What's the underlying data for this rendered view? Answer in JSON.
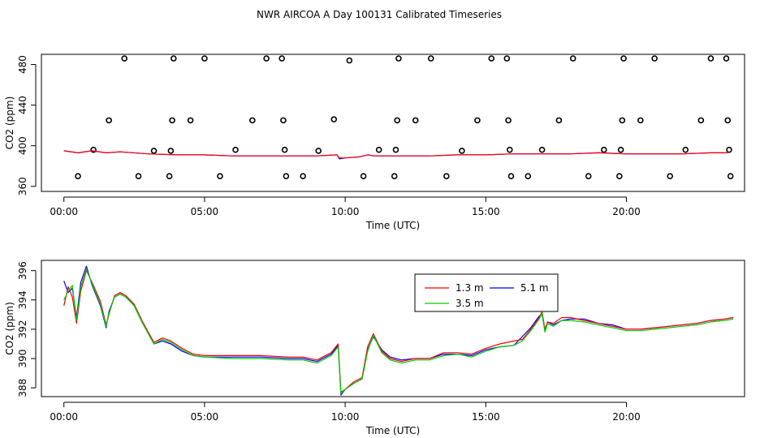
{
  "title": "NWR AIRCOA A  Day 100131  Calibrated Timeseries",
  "colors": {
    "red": "#ff0000",
    "green": "#00cd00",
    "blue": "#0000ff",
    "black": "#000000"
  },
  "chart_data": [
    {
      "type": "scatter",
      "xlabel": "Time (UTC)",
      "ylabel": "CO2 (ppm)",
      "xlim": [
        -0.8,
        24.2
      ],
      "ylim": [
        355,
        490
      ],
      "xticks": [
        0,
        5,
        10,
        15,
        20
      ],
      "xtick_labels": [
        "00:00",
        "05:00",
        "10:00",
        "15:00",
        "20:00"
      ],
      "yticks": [
        360,
        400,
        440,
        480
      ],
      "ytick_labels": [
        "360",
        "400",
        "440",
        "480"
      ],
      "points": [
        [
          0.5,
          370
        ],
        [
          1.05,
          396
        ],
        [
          1.6,
          425
        ],
        [
          2.15,
          486
        ],
        [
          2.65,
          370
        ],
        [
          3.2,
          395
        ],
        [
          3.75,
          370
        ],
        [
          3.8,
          395
        ],
        [
          3.85,
          425
        ],
        [
          3.9,
          486
        ],
        [
          4.5,
          425
        ],
        [
          5.0,
          486
        ],
        [
          5.55,
          370
        ],
        [
          6.1,
          396
        ],
        [
          6.7,
          425
        ],
        [
          7.2,
          486
        ],
        [
          7.75,
          486
        ],
        [
          7.8,
          425
        ],
        [
          7.85,
          396
        ],
        [
          7.9,
          370
        ],
        [
          8.5,
          370
        ],
        [
          9.05,
          395
        ],
        [
          9.6,
          426
        ],
        [
          10.15,
          484
        ],
        [
          10.65,
          370
        ],
        [
          11.2,
          396
        ],
        [
          11.75,
          370
        ],
        [
          11.8,
          396
        ],
        [
          11.85,
          425
        ],
        [
          11.9,
          486
        ],
        [
          12.5,
          425
        ],
        [
          13.05,
          486
        ],
        [
          13.6,
          370
        ],
        [
          14.15,
          395
        ],
        [
          14.7,
          425
        ],
        [
          15.2,
          486
        ],
        [
          15.75,
          486
        ],
        [
          15.8,
          425
        ],
        [
          15.85,
          396
        ],
        [
          15.9,
          370
        ],
        [
          16.5,
          370
        ],
        [
          17.0,
          396
        ],
        [
          17.6,
          425
        ],
        [
          18.1,
          486
        ],
        [
          18.65,
          370
        ],
        [
          19.2,
          396
        ],
        [
          19.75,
          370
        ],
        [
          19.8,
          396
        ],
        [
          19.85,
          425
        ],
        [
          19.9,
          486
        ],
        [
          20.5,
          425
        ],
        [
          21.0,
          486
        ],
        [
          21.55,
          370
        ],
        [
          22.1,
          396
        ],
        [
          22.65,
          425
        ],
        [
          23.0,
          486
        ],
        [
          23.55,
          486
        ],
        [
          23.6,
          425
        ],
        [
          23.65,
          396
        ],
        [
          23.7,
          370
        ]
      ],
      "line_series": [
        {
          "name": "5.1 m",
          "color": "blue",
          "x": [
            0,
            0.5,
            1,
            1.5,
            2,
            3,
            4,
            5,
            6,
            7,
            8,
            9,
            9.7,
            9.8,
            10,
            10.5,
            10.8,
            11,
            12,
            13,
            14,
            15,
            16,
            17,
            18,
            19,
            20,
            21,
            22,
            23,
            23.6
          ],
          "y": [
            395,
            393,
            395,
            393,
            394,
            392,
            391,
            391,
            390,
            390,
            390,
            390,
            391,
            387,
            388,
            389,
            391,
            390,
            390,
            390,
            391,
            391,
            392,
            392,
            392,
            393,
            392,
            392,
            392,
            393,
            393
          ]
        },
        {
          "name": "1.3 m",
          "color": "red",
          "x": [
            0,
            0.5,
            1,
            1.5,
            2,
            3,
            4,
            5,
            6,
            7,
            8,
            9,
            9.7,
            9.8,
            10,
            10.5,
            10.8,
            11,
            12,
            13,
            14,
            15,
            16,
            17,
            18,
            19,
            20,
            21,
            22,
            23,
            23.6
          ],
          "y": [
            395,
            393,
            395,
            393,
            394,
            392,
            391,
            391,
            390,
            390,
            390,
            390,
            391,
            388,
            388,
            389,
            391,
            390,
            390,
            390,
            391,
            391,
            392,
            392,
            392,
            393,
            392,
            392,
            392,
            393,
            393
          ]
        }
      ]
    },
    {
      "type": "line",
      "xlabel": "Time (UTC)",
      "ylabel": "CO2 (ppm)",
      "xlim": [
        -0.8,
        24.2
      ],
      "ylim": [
        387.4,
        396.7
      ],
      "xticks": [
        0,
        5,
        10,
        15,
        20
      ],
      "xtick_labels": [
        "00:00",
        "05:00",
        "10:00",
        "15:00",
        "20:00"
      ],
      "yticks": [
        388,
        390,
        392,
        394,
        396
      ],
      "ytick_labels": [
        "388",
        "390",
        "392",
        "394",
        "396"
      ],
      "legend": {
        "position": "top-right",
        "entries": [
          {
            "label": "1.3 m",
            "color": "red"
          },
          {
            "label": "5.1 m",
            "color": "blue"
          },
          {
            "label": "3.5 m",
            "color": "green"
          }
        ]
      },
      "series": [
        {
          "name": "5.1 m",
          "color": "blue",
          "x": [
            0,
            0.15,
            0.3,
            0.45,
            0.6,
            0.8,
            1.0,
            1.3,
            1.5,
            1.6,
            1.8,
            2.0,
            2.2,
            2.5,
            2.8,
            3.2,
            3.5,
            3.8,
            4.2,
            4.6,
            5.0,
            6.0,
            7.0,
            8.0,
            8.5,
            9.0,
            9.5,
            9.75,
            9.85,
            10.0,
            10.3,
            10.6,
            10.8,
            11.0,
            11.3,
            11.6,
            12.0,
            12.5,
            13.0,
            13.5,
            14.0,
            14.5,
            15.0,
            15.5,
            16.0,
            16.3,
            16.6,
            16.9,
            17.0,
            17.1,
            17.2,
            17.4,
            17.7,
            18.0,
            18.5,
            19.0,
            19.5,
            20.0,
            20.5,
            21.0,
            21.5,
            22.0,
            22.5,
            23.0,
            23.5,
            23.8
          ],
          "y": [
            395.3,
            394.5,
            394.8,
            392.8,
            395.2,
            396.3,
            395.0,
            393.6,
            392.1,
            393.2,
            394.2,
            394.4,
            394.2,
            393.6,
            392.4,
            391.0,
            391.2,
            391.0,
            390.5,
            390.2,
            390.1,
            390.1,
            390.1,
            390.0,
            390.0,
            389.8,
            390.3,
            390.9,
            387.5,
            387.9,
            388.3,
            388.6,
            390.6,
            391.5,
            390.6,
            390.1,
            389.9,
            390.0,
            390.0,
            390.3,
            390.3,
            390.2,
            390.6,
            390.8,
            390.9,
            391.5,
            392.1,
            392.9,
            393.0,
            391.9,
            392.5,
            392.3,
            392.6,
            392.7,
            392.7,
            392.4,
            392.3,
            392.0,
            392.0,
            392.1,
            392.2,
            392.3,
            392.4,
            392.6,
            392.7,
            392.8
          ]
        },
        {
          "name": "1.3 m",
          "color": "red",
          "x": [
            0,
            0.15,
            0.3,
            0.45,
            0.6,
            0.8,
            1.0,
            1.3,
            1.5,
            1.6,
            1.8,
            2.0,
            2.2,
            2.5,
            2.8,
            3.2,
            3.5,
            3.8,
            4.2,
            4.6,
            5.0,
            6.0,
            7.0,
            8.0,
            8.5,
            9.0,
            9.5,
            9.75,
            9.85,
            10.0,
            10.3,
            10.6,
            10.8,
            11.0,
            11.3,
            11.6,
            12.0,
            12.5,
            13.0,
            13.5,
            14.0,
            14.5,
            15.0,
            15.5,
            16.0,
            16.3,
            16.6,
            16.9,
            17.0,
            17.1,
            17.2,
            17.4,
            17.7,
            18.0,
            18.5,
            19.0,
            19.5,
            20.0,
            20.5,
            21.0,
            21.5,
            22.0,
            22.5,
            23.0,
            23.5,
            23.8
          ],
          "y": [
            393.6,
            394.9,
            394.2,
            392.4,
            394.6,
            396.0,
            395.2,
            393.9,
            392.3,
            393.0,
            394.3,
            394.5,
            394.3,
            393.7,
            392.5,
            391.1,
            391.4,
            391.2,
            390.7,
            390.3,
            390.2,
            390.2,
            390.2,
            390.1,
            390.1,
            389.9,
            390.4,
            391.0,
            387.7,
            387.9,
            388.4,
            388.7,
            390.8,
            391.7,
            390.5,
            390.0,
            389.8,
            390.0,
            390.0,
            390.4,
            390.4,
            390.3,
            390.7,
            391.0,
            391.2,
            391.3,
            392.0,
            392.8,
            393.2,
            392.0,
            392.5,
            392.4,
            392.8,
            392.8,
            392.6,
            392.4,
            392.2,
            392.0,
            392.0,
            392.1,
            392.2,
            392.3,
            392.4,
            392.6,
            392.7,
            392.8
          ]
        },
        {
          "name": "3.5 m",
          "color": "green",
          "x": [
            0,
            0.15,
            0.3,
            0.45,
            0.6,
            0.8,
            1.0,
            1.3,
            1.5,
            1.6,
            1.8,
            2.0,
            2.2,
            2.5,
            2.8,
            3.2,
            3.5,
            3.8,
            4.2,
            4.6,
            5.0,
            6.0,
            7.0,
            8.0,
            8.5,
            9.0,
            9.5,
            9.75,
            9.85,
            10.0,
            10.3,
            10.6,
            10.8,
            11.0,
            11.3,
            11.6,
            12.0,
            12.5,
            13.0,
            13.5,
            14.0,
            14.5,
            15.0,
            15.5,
            16.0,
            16.3,
            16.6,
            16.9,
            17.0,
            17.1,
            17.2,
            17.4,
            17.7,
            18.0,
            18.5,
            19.0,
            19.5,
            20.0,
            20.5,
            21.0,
            21.5,
            22.0,
            22.5,
            23.0,
            23.5,
            23.8
          ],
          "y": [
            394.0,
            394.6,
            395.0,
            392.6,
            394.9,
            396.1,
            395.1,
            393.7,
            392.2,
            393.1,
            394.2,
            394.4,
            394.2,
            393.6,
            392.4,
            391.0,
            391.3,
            391.1,
            390.6,
            390.2,
            390.1,
            390.0,
            390.0,
            389.9,
            389.9,
            389.7,
            390.2,
            390.8,
            387.6,
            387.9,
            388.3,
            388.6,
            390.5,
            391.6,
            390.4,
            389.9,
            389.7,
            389.9,
            389.9,
            390.2,
            390.3,
            390.1,
            390.5,
            390.8,
            390.9,
            391.2,
            391.9,
            392.7,
            393.1,
            391.8,
            392.4,
            392.2,
            392.6,
            392.6,
            392.5,
            392.3,
            392.1,
            391.9,
            391.9,
            392.0,
            392.1,
            392.2,
            392.3,
            392.5,
            392.6,
            392.7
          ]
        }
      ]
    }
  ]
}
